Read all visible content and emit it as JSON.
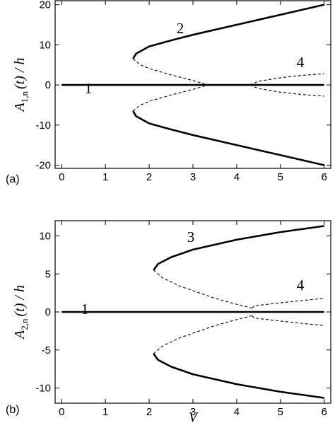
{
  "chart_data": [
    {
      "type": "line",
      "panel_label": "(a)",
      "y_label": {
        "main": "A",
        "sub": "1,n",
        "rest": "(t) / h"
      },
      "xlim": [
        -0.15,
        6.15
      ],
      "ylim": [
        -20.8,
        21
      ],
      "xticks": [
        0,
        1,
        2,
        3,
        4,
        5,
        6
      ],
      "yticks": [
        -20,
        -10,
        0,
        10,
        20
      ],
      "series": [
        {
          "style": "solid",
          "color": "#000000",
          "x": [
            0,
            6
          ],
          "values": [
            0,
            0
          ]
        },
        {
          "style": "solid",
          "color": "#000000",
          "x": [
            1.63,
            1.7,
            2,
            2.5,
            3,
            4,
            5,
            6
          ],
          "values": [
            6.5,
            7.8,
            9.6,
            11.1,
            12.5,
            15,
            17.5,
            20
          ]
        },
        {
          "style": "solid",
          "color": "#000000",
          "x": [
            1.63,
            1.7,
            2,
            2.5,
            3,
            4,
            5,
            6
          ],
          "values": [
            -6.5,
            -7.8,
            -9.6,
            -11.1,
            -12.5,
            -15,
            -17.5,
            -20
          ]
        },
        {
          "style": "dashed",
          "color": "#000000",
          "x": [
            1.63,
            1.8,
            2,
            2.5,
            3,
            3.35
          ],
          "values": [
            6.5,
            5,
            4.1,
            2.5,
            1.1,
            0
          ]
        },
        {
          "style": "dashed",
          "color": "#000000",
          "x": [
            1.63,
            1.8,
            2,
            2.5,
            3,
            3.35
          ],
          "values": [
            -6.5,
            -5,
            -4.1,
            -2.5,
            -1.1,
            0
          ]
        },
        {
          "style": "dashed",
          "color": "#000000",
          "x": [
            4.3,
            4.5,
            5,
            5.5,
            6
          ],
          "values": [
            0,
            0.9,
            1.8,
            2.4,
            2.8
          ]
        },
        {
          "style": "dashed",
          "color": "#000000",
          "x": [
            4.3,
            4.5,
            5,
            5.5,
            6
          ],
          "values": [
            0,
            -0.9,
            -1.8,
            -2.4,
            -2.8
          ]
        }
      ],
      "annotations": [
        "1",
        "2",
        "4"
      ]
    },
    {
      "type": "line",
      "panel_label": "(b)",
      "xlabel": "V",
      "y_label": {
        "main": "A",
        "sub": "2,n",
        "rest": "(t) / h"
      },
      "xlim": [
        -0.15,
        6.15
      ],
      "ylim": [
        -12,
        12
      ],
      "xticks": [
        0,
        1,
        2,
        3,
        4,
        5,
        6
      ],
      "yticks": [
        -10,
        -5,
        0,
        5,
        10
      ],
      "series": [
        {
          "style": "solid",
          "color": "#000000",
          "x": [
            0,
            6
          ],
          "values": [
            0,
            0
          ]
        },
        {
          "style": "solid",
          "color": "#000000",
          "x": [
            2.1,
            2.2,
            2.5,
            3,
            4,
            5,
            6
          ],
          "values": [
            5.5,
            6.3,
            7.2,
            8.2,
            9.5,
            10.5,
            11.3
          ]
        },
        {
          "style": "solid",
          "color": "#000000",
          "x": [
            2.1,
            2.2,
            2.5,
            3,
            4,
            5,
            6
          ],
          "values": [
            -5.5,
            -6.3,
            -7.2,
            -8.2,
            -9.5,
            -10.5,
            -11.3
          ]
        },
        {
          "style": "dashed",
          "color": "#000000",
          "x": [
            2.1,
            2.3,
            2.7,
            3,
            3.5,
            4,
            4.35
          ],
          "values": [
            5.5,
            4.5,
            3.4,
            2.8,
            1.8,
            1,
            0.5
          ]
        },
        {
          "style": "dashed",
          "color": "#000000",
          "x": [
            2.1,
            2.3,
            2.7,
            3,
            3.5,
            4,
            4.35
          ],
          "values": [
            -5.5,
            -4.5,
            -3.4,
            -2.8,
            -1.8,
            -1,
            -0.5
          ]
        },
        {
          "style": "dashed",
          "color": "#000000",
          "x": [
            4.35,
            4.4,
            5,
            5.5,
            6
          ],
          "values": [
            0.5,
            0.8,
            1.2,
            1.5,
            1.8
          ]
        },
        {
          "style": "dashed",
          "color": "#000000",
          "x": [
            4.35,
            4.4,
            5,
            5.5,
            6
          ],
          "values": [
            -0.5,
            -0.8,
            -1.2,
            -1.5,
            -1.8
          ]
        }
      ],
      "annotations": [
        "1",
        "3",
        "4"
      ]
    }
  ]
}
